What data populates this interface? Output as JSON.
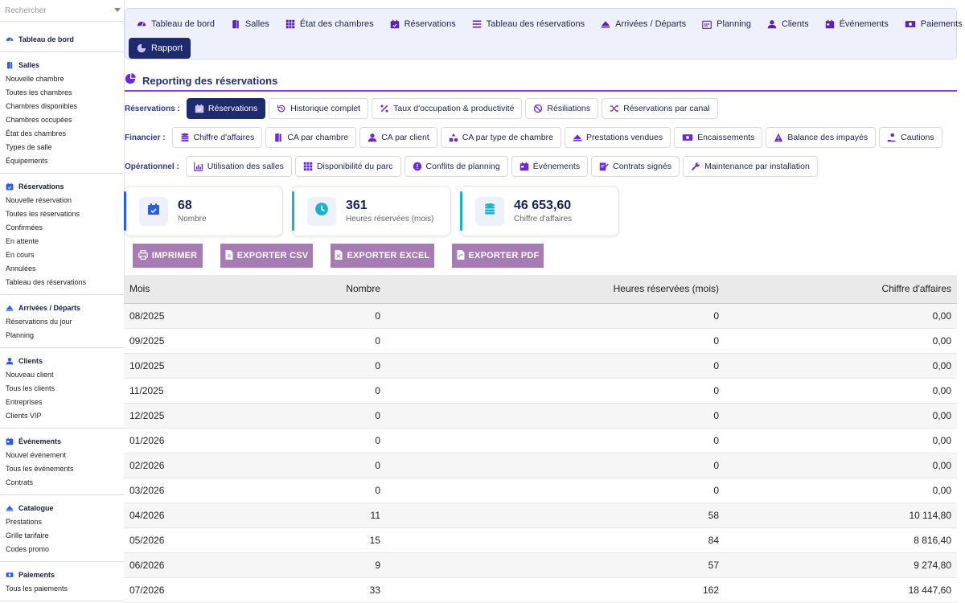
{
  "sidebar": {
    "search_placeholder": "Rechercher",
    "groups": [
      {
        "title": "Tableau de bord",
        "icon": "gauge-icon",
        "items": []
      },
      {
        "title": "Salles",
        "icon": "door-icon",
        "items": [
          "Nouvelle chambre",
          "Toutes les chambres",
          "Chambres disponibles",
          "Chambres occupées",
          "État des chambres",
          "Types de salle",
          "Équipements"
        ]
      },
      {
        "title": "Réservations",
        "icon": "calendar-check-icon",
        "items": [
          "Nouvelle réservation",
          "Toutes les réservations",
          "Confirmées",
          "En attente",
          "En cours",
          "Annulées",
          "Tableau des réservations"
        ]
      },
      {
        "title": "Arrivées / Départs",
        "icon": "eject-icon",
        "items": [
          "Réservations du jour",
          "Planning"
        ]
      },
      {
        "title": "Clients",
        "icon": "user-icon",
        "items": [
          "Nouveau client",
          "Tous les clients",
          "Entreprises",
          "Clients VIP"
        ]
      },
      {
        "title": "Événements",
        "icon": "calendar-icon",
        "items": [
          "Nouvel événement",
          "Tous les événements",
          "Contrats"
        ]
      },
      {
        "title": "Catalogue",
        "icon": "eject-icon",
        "items": [
          "Prestations",
          "Grille tarifaire",
          "Codes promo"
        ]
      },
      {
        "title": "Paiements",
        "icon": "money-icon",
        "items": [
          "Tous les paiements"
        ]
      }
    ]
  },
  "topnav": {
    "row1": [
      {
        "label": "Tableau de bord",
        "icon": "gauge-icon"
      },
      {
        "label": "Salles",
        "icon": "door-icon"
      },
      {
        "label": "État des chambres",
        "icon": "grid-icon"
      },
      {
        "label": "Réservations",
        "icon": "calendar-check-icon"
      },
      {
        "label": "Tableau des réservations",
        "icon": "list-icon"
      },
      {
        "label": "Arrivées / Départs",
        "icon": "eject-icon"
      },
      {
        "label": "Planning",
        "icon": "calendar-grid-icon"
      },
      {
        "label": "Clients",
        "icon": "user-icon"
      },
      {
        "label": "Événements",
        "icon": "calendar-icon"
      },
      {
        "label": "Paiements",
        "icon": "money-icon"
      }
    ],
    "row2": [
      {
        "label": "Rapport",
        "icon": "pie-icon",
        "active": true
      }
    ]
  },
  "report": {
    "title": "Reporting des réservations",
    "rows": [
      {
        "label": "Réservations :",
        "chips": [
          {
            "label": "Réservations",
            "icon": "calendar-check-icon",
            "active": true
          },
          {
            "label": "Historique complet",
            "icon": "history-icon"
          },
          {
            "label": "Taux d'occupation & productivité",
            "icon": "percent-icon"
          },
          {
            "label": "Résiliations",
            "icon": "ban-icon"
          },
          {
            "label": "Réservations par canal",
            "icon": "shuffle-icon"
          }
        ]
      },
      {
        "label": "Financier :",
        "chips": [
          {
            "label": "Chiffre d'affaires",
            "icon": "coins-icon"
          },
          {
            "label": "CA par chambre",
            "icon": "door-icon"
          },
          {
            "label": "CA par client",
            "icon": "user-icon"
          },
          {
            "label": "CA par type de chambre",
            "icon": "shapes-icon"
          },
          {
            "label": "Prestations vendues",
            "icon": "eject-icon"
          },
          {
            "label": "Encaissements",
            "icon": "money-icon"
          },
          {
            "label": "Balance des impayés",
            "icon": "warning-icon"
          },
          {
            "label": "Cautions",
            "icon": "hand-coin-icon"
          }
        ]
      },
      {
        "label": "Opérationnel :",
        "chips": [
          {
            "label": "Utilisation des salles",
            "icon": "chart-icon"
          },
          {
            "label": "Disponibilité du parc",
            "icon": "grid-icon"
          },
          {
            "label": "Conflits de planning",
            "icon": "alert-circle-icon"
          },
          {
            "label": "Événements",
            "icon": "calendar-icon"
          },
          {
            "label": "Contrats signés",
            "icon": "signature-icon"
          },
          {
            "label": "Maintenance par installation",
            "icon": "wrench-icon"
          }
        ]
      }
    ]
  },
  "kpis": [
    {
      "value": "68",
      "label": "Nombre",
      "icon": "calendar-check-icon",
      "color": "#2b5ee8"
    },
    {
      "value": "361",
      "label": "Heures réservées (mois)",
      "icon": "clock-icon",
      "color": "#19b3c9"
    },
    {
      "value": "46 653,60",
      "label": "Chiffre d'affaires",
      "icon": "coins-icon",
      "color": "#19b3c9"
    }
  ],
  "exports": [
    "IMPRIMER",
    "EXPORTER CSV",
    "EXPORTER EXCEL",
    "EXPORTER PDF"
  ],
  "table": {
    "headers": [
      "Mois",
      "Nombre",
      "Heures réservées (mois)",
      "Chiffre d'affaires"
    ],
    "rows": [
      [
        "08/2025",
        "0",
        "0",
        "0,00"
      ],
      [
        "09/2025",
        "0",
        "0",
        "0,00"
      ],
      [
        "10/2025",
        "0",
        "0",
        "0,00"
      ],
      [
        "11/2025",
        "0",
        "0",
        "0,00"
      ],
      [
        "12/2025",
        "0",
        "0",
        "0,00"
      ],
      [
        "01/2026",
        "0",
        "0",
        "0,00"
      ],
      [
        "02/2026",
        "0",
        "0",
        "0,00"
      ],
      [
        "03/2026",
        "0",
        "0",
        "0,00"
      ],
      [
        "04/2026",
        "11",
        "58",
        "10 114,80"
      ],
      [
        "05/2026",
        "15",
        "84",
        "8 816,40"
      ],
      [
        "06/2026",
        "9",
        "57",
        "9 274,80"
      ],
      [
        "07/2026",
        "33",
        "162",
        "18 447,60"
      ]
    ]
  },
  "colors": {
    "accent": "#5b21b6",
    "nav_active": "#1e2a6e",
    "export": "#a77bb3",
    "underline": "#8b3fe0"
  }
}
